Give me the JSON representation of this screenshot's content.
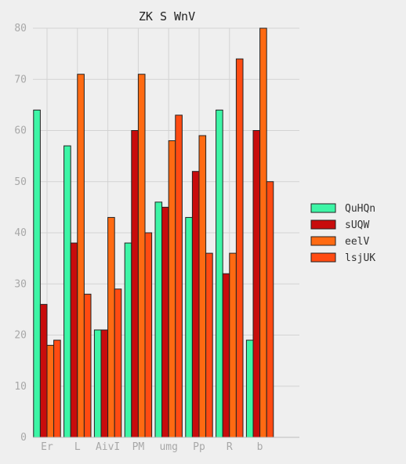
{
  "chart_data": {
    "type": "bar",
    "title": "ZK S WnV",
    "xlabel": "",
    "ylabel": "",
    "categories": [
      "Er",
      "L",
      "AivI",
      "PM",
      "umg",
      "Pp",
      "R",
      "b"
    ],
    "ylim": [
      0,
      80
    ],
    "yticks": [
      0,
      10,
      20,
      30,
      40,
      50,
      60,
      70,
      80
    ],
    "grid": true,
    "legend": "right",
    "series": [
      {
        "name": "QuHQn",
        "color": "#3df5a6",
        "values": [
          64,
          57,
          21,
          38,
          46,
          43,
          64,
          19
        ]
      },
      {
        "name": "sUQW",
        "color": "#c80c0c",
        "values": [
          26,
          38,
          21,
          60,
          45,
          52,
          32,
          60
        ]
      },
      {
        "name": "eelV",
        "color": "#ff6a12",
        "values": [
          18,
          71,
          43,
          71,
          58,
          59,
          36,
          80
        ]
      },
      {
        "name": "lsjUK",
        "color": "#ff4b12",
        "values": [
          19,
          28,
          29,
          40,
          63,
          36,
          74,
          50
        ]
      }
    ]
  }
}
